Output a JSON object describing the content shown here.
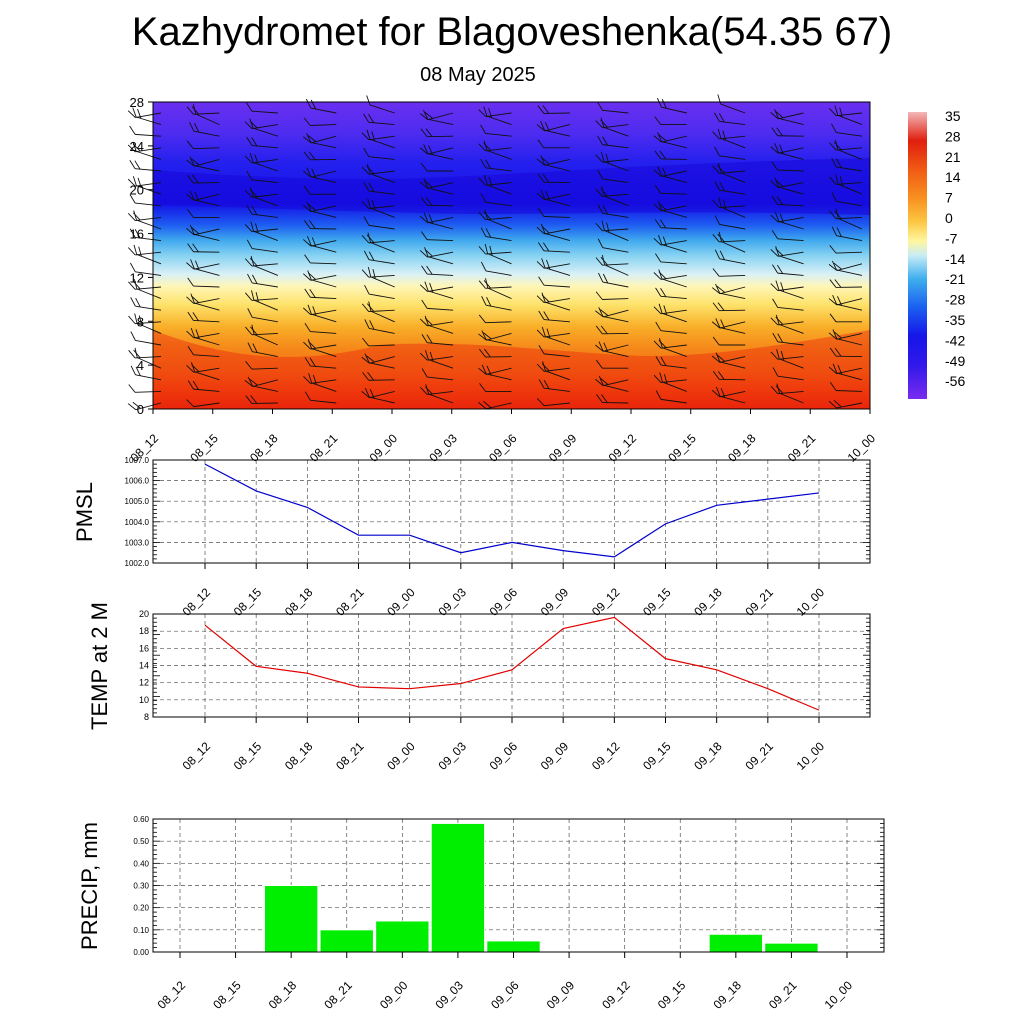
{
  "title": "Kazhydromet for Blagoveshenka(54.35 67)",
  "subtitle": "08 May 2025",
  "colors": {
    "pmsl_line": "#0000cc",
    "temp_line": "#e00000",
    "precip_bar": "#00ee00",
    "grid": "#555555"
  },
  "chart_data": [
    {
      "type": "heatmap",
      "name": "vertical-section",
      "x": [
        "08_12",
        "08_15",
        "08_18",
        "08_21",
        "09_00",
        "09_03",
        "09_06",
        "09_09",
        "09_12",
        "09_15",
        "09_18",
        "09_21",
        "10_00"
      ],
      "yticks": [
        0,
        4,
        8,
        12,
        16,
        20,
        24,
        28
      ],
      "ylim": [
        0,
        28
      ],
      "colorbar_labels": [
        "35",
        "28",
        "21",
        "14",
        "7",
        "0",
        "-7",
        "-14",
        "-21",
        "-28",
        "-35",
        "-42",
        "-49",
        "-56"
      ],
      "colorbar_range": [
        -63,
        42
      ],
      "wind_barbs": true
    },
    {
      "type": "line",
      "name": "pmsl",
      "ylabel": "PMSL",
      "x": [
        "08_12",
        "08_15",
        "08_18",
        "08_21",
        "09_00",
        "09_03",
        "09_06",
        "09_09",
        "09_12",
        "09_15",
        "09_18",
        "09_21",
        "10_00"
      ],
      "values": [
        1006.8,
        1005.5,
        1004.7,
        1003.35,
        1003.35,
        1002.5,
        1003.0,
        1002.6,
        1002.3,
        1003.9,
        1004.8,
        1005.1,
        1005.4
      ],
      "ylim": [
        1002.0,
        1007.0
      ],
      "yticks": [
        "1002.0",
        "1003.0",
        "1004.0",
        "1005.0",
        "1006.0",
        "1007.0"
      ],
      "grid": true
    },
    {
      "type": "line",
      "name": "temp",
      "ylabel": "TEMP at 2 M",
      "x": [
        "08_12",
        "08_15",
        "08_18",
        "08_21",
        "09_00",
        "09_03",
        "09_06",
        "09_09",
        "09_12",
        "09_15",
        "09_18",
        "09_21",
        "10_00"
      ],
      "values": [
        18.7,
        13.9,
        13.1,
        11.5,
        11.3,
        11.9,
        13.5,
        18.3,
        19.6,
        14.8,
        13.5,
        11.3,
        8.8
      ],
      "ylim": [
        8,
        20
      ],
      "yticks": [
        "8",
        "10",
        "12",
        "14",
        "16",
        "18",
        "20"
      ],
      "grid": true
    },
    {
      "type": "bar",
      "name": "precip",
      "ylabel": "PRECIP, mm",
      "categories": [
        "08_12",
        "08_15",
        "08_18",
        "08_21",
        "09_00",
        "09_03",
        "09_06",
        "09_09",
        "09_12",
        "09_15",
        "09_18",
        "09_21",
        "10_00"
      ],
      "values": [
        0,
        0,
        0.3,
        0.1,
        0.14,
        0.58,
        0.05,
        0,
        0,
        0,
        0.08,
        0.04,
        0
      ],
      "ylim": [
        0,
        0.6
      ],
      "yticks": [
        "0.00",
        "0.10",
        "0.20",
        "0.30",
        "0.40",
        "0.50",
        "0.60"
      ],
      "grid": true
    }
  ]
}
